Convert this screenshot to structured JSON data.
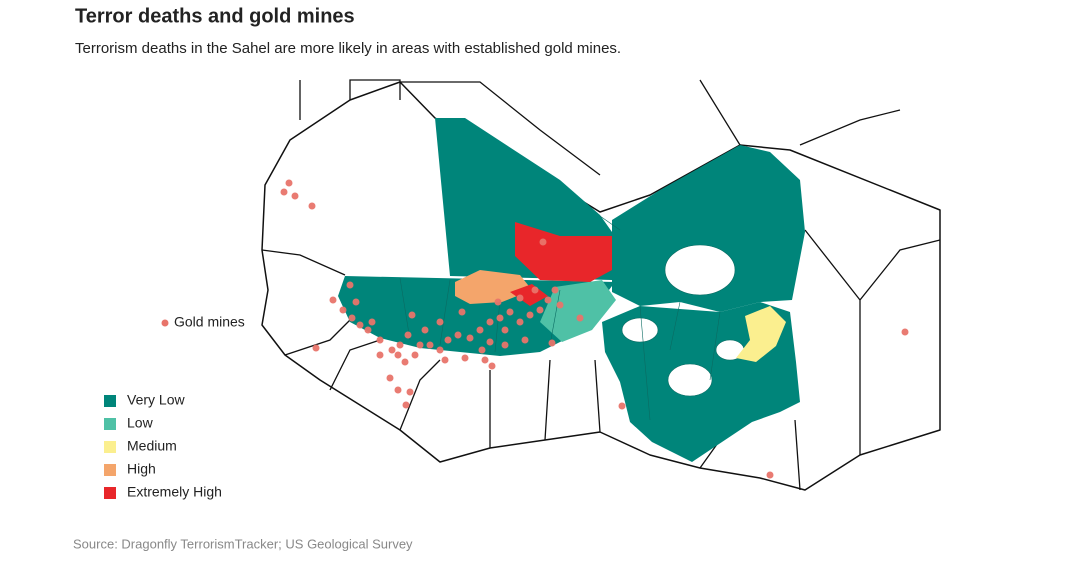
{
  "header": {
    "title": "Terror deaths and gold mines",
    "subtitle": "Terrorism deaths in the Sahel are more likely in areas with established gold mines."
  },
  "legend": {
    "gold_mines": {
      "label": "Gold mines",
      "color": "#e8746a"
    },
    "levels": [
      {
        "label": "Very Low",
        "color": "#00857a"
      },
      {
        "label": "Low",
        "color": "#4fc1a6"
      },
      {
        "label": "Medium",
        "color": "#fbef8f"
      },
      {
        "label": "High",
        "color": "#f4a56b"
      },
      {
        "label": "Extremely High",
        "color": "#e8262a"
      }
    ]
  },
  "source": "Source: Dragonfly TerrorismTracker; US Geological Survey"
}
